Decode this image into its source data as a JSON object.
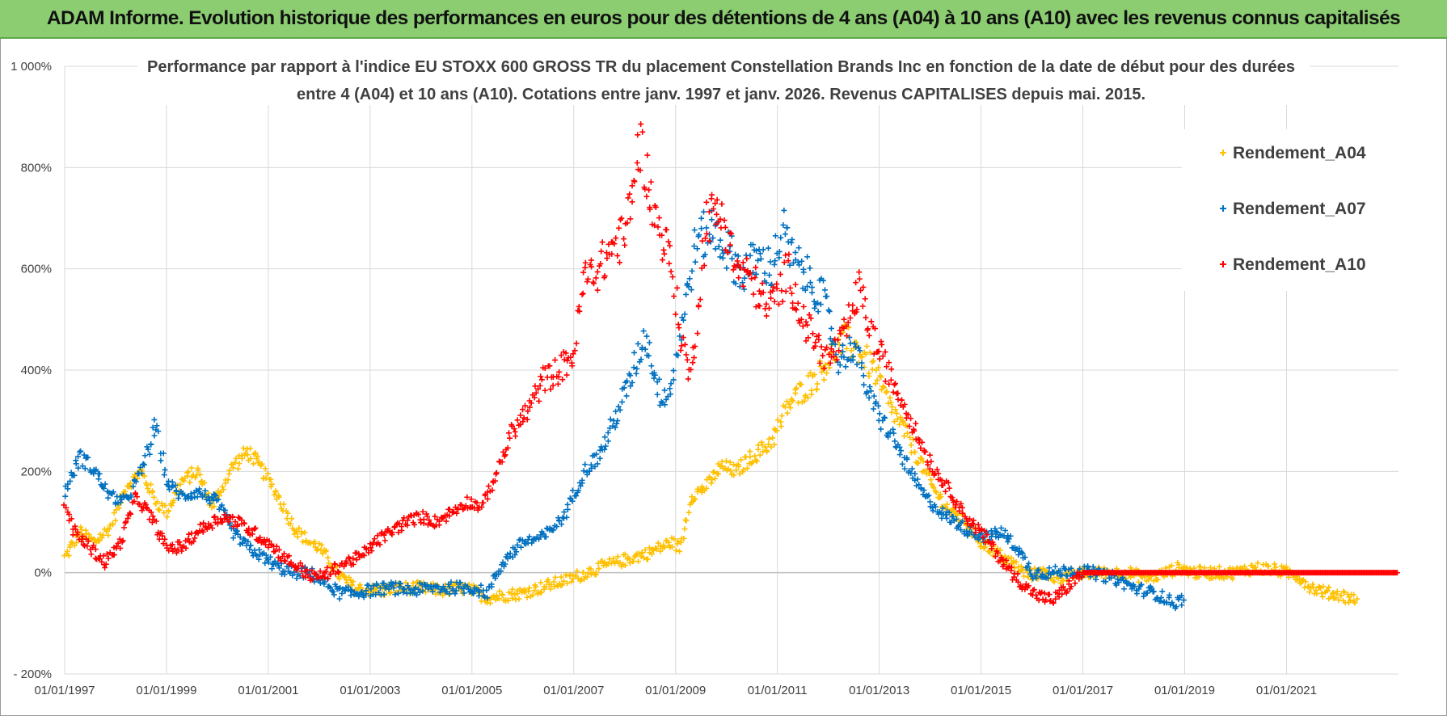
{
  "banner": {
    "title": "ADAM Informe. Evolution historique des performances en euros pour des détentions de 4 ans (A04) à 10 ans (A10) avec les revenus connus capitalisés"
  },
  "colors": {
    "banner_bg": "#8ccd72",
    "A04": "#ffc000",
    "A07": "#0070c0",
    "A10": "#ff0000",
    "grid": "#d9d9d9"
  },
  "chart_data": {
    "type": "scatter",
    "title_lines": [
      "Performance par rapport à l'indice EU STOXX 600 GROSS TR  du placement Constellation Brands Inc en fonction de la date de début pour des durées",
      "entre 4 (A04) et 10 ans (A10).  Cotations entre janv. 1997 et janv. 2026. Revenus CAPITALISES depuis mai. 2015."
    ],
    "xlabel": "",
    "ylabel": "",
    "xlim": [
      1997.0,
      2023.2
    ],
    "ylim": [
      -200,
      1000
    ],
    "y_ticks": [
      {
        "value": 1000,
        "label": "1 000%"
      },
      {
        "value": 800,
        "label": "800%"
      },
      {
        "value": 600,
        "label": "600%"
      },
      {
        "value": 400,
        "label": "400%"
      },
      {
        "value": 200,
        "label": "200%"
      },
      {
        "value": 0,
        "label": "0%"
      },
      {
        "value": -200,
        "label": "- 200%"
      }
    ],
    "x_ticks": [
      {
        "value": 1997,
        "label": "01/01/1997"
      },
      {
        "value": 1999,
        "label": "01/01/1999"
      },
      {
        "value": 2001,
        "label": "01/01/2001"
      },
      {
        "value": 2003,
        "label": "01/01/2003"
      },
      {
        "value": 2005,
        "label": "01/01/2005"
      },
      {
        "value": 2007,
        "label": "01/01/2007"
      },
      {
        "value": 2009,
        "label": "01/01/2009"
      },
      {
        "value": 2011,
        "label": "01/01/2011"
      },
      {
        "value": 2013,
        "label": "01/01/2013"
      },
      {
        "value": 2015,
        "label": "01/01/2015"
      },
      {
        "value": 2017,
        "label": "01/01/2017"
      },
      {
        "value": 2019,
        "label": "01/01/2019"
      },
      {
        "value": 2021,
        "label": "01/01/2021"
      }
    ],
    "legend": {
      "position": "right",
      "entries": [
        "Rendement_A04",
        "Rendement_A07",
        "Rendement_A10"
      ]
    },
    "series": [
      {
        "name": "Rendement_A04",
        "marker": "+",
        "x": [
          1997.0,
          1997.3,
          1997.6,
          1997.9,
          1998.2,
          1998.5,
          1998.8,
          1999.0,
          1999.3,
          1999.6,
          1999.9,
          2000.1,
          2000.3,
          2000.6,
          2000.9,
          2001.2,
          2001.5,
          2001.8,
          2002.0,
          2002.4,
          2002.7,
          2003.0,
          2003.3,
          2003.6,
          2004.0,
          2004.4,
          2004.8,
          2005.0,
          2005.3,
          2005.6,
          2006.0,
          2006.5,
          2007.0,
          2007.5,
          2008.0,
          2008.5,
          2008.9,
          2009.1,
          2009.3,
          2009.6,
          2009.9,
          2010.2,
          2010.5,
          2010.8,
          2011.0,
          2011.2,
          2011.5,
          2011.8,
          2012.0,
          2012.3,
          2012.6,
          2012.9,
          2013.2,
          2013.5,
          2013.8,
          2014.1,
          2014.4,
          2014.7,
          2015.0,
          2015.3,
          2015.6,
          2015.9,
          2016.2,
          2016.5,
          2016.8,
          2017.1,
          2017.5,
          2017.9,
          2018.2,
          2018.5,
          2018.9,
          2019.2,
          2019.6,
          2020.0,
          2020.4,
          2020.8,
          2021.2,
          2021.5,
          2021.8,
          2022.1,
          2022.4
        ],
        "y": [
          30,
          80,
          60,
          90,
          170,
          200,
          140,
          120,
          180,
          200,
          130,
          170,
          210,
          240,
          200,
          150,
          90,
          60,
          50,
          -5,
          -30,
          -35,
          -35,
          -30,
          -30,
          -35,
          -30,
          -35,
          -50,
          -45,
          -40,
          -25,
          -10,
          10,
          25,
          40,
          60,
          50,
          150,
          170,
          210,
          200,
          230,
          250,
          280,
          330,
          360,
          390,
          420,
          460,
          440,
          400,
          330,
          280,
          220,
          160,
          120,
          100,
          60,
          40,
          20,
          -5,
          0,
          -10,
          -5,
          0,
          0,
          0,
          -10,
          -5,
          10,
          0,
          0,
          0,
          10,
          5,
          -5,
          -30,
          -40,
          -45,
          -55
        ]
      },
      {
        "name": "Rendement_A07",
        "marker": "+",
        "x": [
          1997.0,
          1997.3,
          1997.6,
          1997.9,
          1998.2,
          1998.5,
          1998.8,
          1999.0,
          1999.3,
          1999.6,
          2000.0,
          2000.3,
          2000.6,
          2000.9,
          2001.2,
          2001.5,
          2001.8,
          2002.1,
          2002.4,
          2002.7,
          2003.0,
          2003.4,
          2003.8,
          2004.2,
          2004.6,
          2005.0,
          2005.3,
          2005.6,
          2006.0,
          2006.4,
          2006.8,
          2007.2,
          2007.5,
          2007.8,
          2008.1,
          2008.4,
          2008.7,
          2008.9,
          2009.1,
          2009.4,
          2009.7,
          2010.0,
          2010.3,
          2010.6,
          2010.9,
          2011.1,
          2011.3,
          2011.6,
          2011.9,
          2012.2,
          2012.5,
          2012.8,
          2013.0,
          2013.3,
          2013.6,
          2013.9,
          2014.2,
          2014.5,
          2014.8,
          2015.1,
          2015.4,
          2015.7,
          2016.0,
          2016.4,
          2016.8,
          2017.2,
          2017.6,
          2018.0,
          2018.4,
          2018.8,
          2019.0
        ],
        "y": [
          160,
          230,
          200,
          150,
          140,
          200,
          290,
          180,
          150,
          160,
          140,
          80,
          50,
          30,
          10,
          0,
          0,
          -20,
          -40,
          -40,
          -35,
          -30,
          -35,
          -30,
          -30,
          -30,
          -40,
          20,
          60,
          70,
          110,
          200,
          230,
          300,
          380,
          470,
          350,
          360,
          480,
          650,
          680,
          640,
          590,
          620,
          600,
          680,
          620,
          580,
          540,
          420,
          450,
          350,
          310,
          260,
          200,
          150,
          120,
          100,
          80,
          70,
          80,
          50,
          0,
          0,
          5,
          0,
          -10,
          -30,
          -40,
          -60,
          -50
        ]
      },
      {
        "name": "Rendement_A10",
        "marker": "+",
        "x": [
          1997.0,
          1997.2,
          1997.5,
          1997.8,
          1998.1,
          1998.4,
          1998.7,
          1999.0,
          1999.3,
          1999.6,
          1999.9,
          2000.1,
          2000.4,
          2000.7,
          2001.0,
          2001.3,
          2001.6,
          2001.9,
          2002.2,
          2002.5,
          2002.8,
          2003.1,
          2003.4,
          2003.7,
          2004.0,
          2004.3,
          2004.6,
          2004.9,
          2005.2,
          2005.5,
          2005.8,
          2006.1,
          2006.4,
          2006.7,
          2007.0,
          2007.2,
          2007.5,
          2007.8,
          2008.0,
          2008.3,
          2008.6,
          2008.9,
          2009.1,
          2009.3,
          2009.6,
          2009.9,
          2010.2,
          2010.5,
          2010.8,
          2011.0,
          2011.2,
          2011.5,
          2011.8,
          2012.0,
          2012.3,
          2012.6,
          2012.9,
          2013.2,
          2013.5,
          2013.8,
          2014.1,
          2014.4,
          2014.7,
          2015.0,
          2015.3,
          2015.6,
          2015.9,
          2016.1,
          2016.4,
          2017.0,
          2018.0,
          2019.0,
          2020.0,
          2021.0,
          2022.0,
          2023.0,
          2023.2
        ],
        "y": [
          130,
          80,
          50,
          20,
          60,
          150,
          110,
          50,
          50,
          80,
          100,
          110,
          100,
          80,
          60,
          30,
          10,
          -10,
          0,
          20,
          30,
          60,
          80,
          100,
          110,
          100,
          120,
          140,
          130,
          200,
          280,
          320,
          380,
          400,
          430,
          580,
          600,
          650,
          660,
          850,
          700,
          620,
          470,
          380,
          700,
          710,
          600,
          580,
          520,
          550,
          600,
          500,
          450,
          420,
          460,
          560,
          460,
          390,
          330,
          260,
          200,
          160,
          110,
          80,
          40,
          0,
          -30,
          -45,
          -55,
          0,
          0,
          0,
          0,
          0,
          0,
          0,
          0
        ]
      }
    ]
  }
}
